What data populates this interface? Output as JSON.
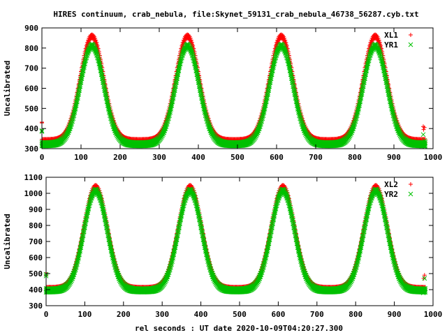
{
  "title": "HIRES continuum, crab_nebula, file:Skynet_59131_crab_nebula_46738_56287.cyb.txt",
  "xlabel_bottom": "rel seconds : UT date 2020-10-09T04:20:27.300",
  "colors": {
    "red": "#ff0000",
    "green": "#00c000"
  },
  "chart_data": [
    {
      "type": "scatter",
      "ylabel": "Uncalibrated",
      "xlim": [
        0,
        1000
      ],
      "ylim": [
        300,
        900
      ],
      "xticks": [
        "0",
        "100",
        "200",
        "300",
        "400",
        "500",
        "600",
        "700",
        "800",
        "900",
        "1000"
      ],
      "yticks": [
        "300",
        "400",
        "500",
        "600",
        "700",
        "800",
        "900"
      ],
      "legend_position": "top-right",
      "model": {
        "peaks_x": [
          128,
          372,
          612,
          852
        ],
        "peak_width_sigma": 30,
        "x_range": [
          0,
          980
        ]
      },
      "series": [
        {
          "name": "XL1",
          "marker": "+",
          "color": "#ff0000",
          "baseline": 338,
          "peak": 858,
          "outliers": [
            [
              0,
              432
            ],
            [
              0,
              428
            ],
            [
              975,
              410
            ],
            [
              978,
              405
            ],
            [
              976,
              395
            ]
          ]
        },
        {
          "name": "YR1",
          "marker": "x",
          "color": "#00c000",
          "baseline": 322,
          "peak": 810,
          "outliers": [
            [
              0,
              390
            ],
            [
              0,
              385
            ],
            [
              975,
              370
            ],
            [
              978,
              340
            ],
            [
              979,
              310
            ]
          ]
        }
      ]
    },
    {
      "type": "scatter",
      "ylabel": "Uncalibrated",
      "xlim": [
        0,
        1000
      ],
      "ylim": [
        300,
        1100
      ],
      "xticks": [
        "0",
        "100",
        "200",
        "300",
        "400",
        "500",
        "600",
        "700",
        "800",
        "900",
        "1000"
      ],
      "yticks": [
        "300",
        "400",
        "500",
        "600",
        "700",
        "800",
        "900",
        "1000",
        "1100"
      ],
      "legend_position": "top-right",
      "model": {
        "peaks_x": [
          128,
          372,
          612,
          852
        ],
        "peak_width_sigma": 30,
        "x_range": [
          0,
          980
        ]
      },
      "series": [
        {
          "name": "XL2",
          "marker": "+",
          "color": "#ff0000",
          "baseline": 405,
          "peak": 1040,
          "outliers": [
            [
              0,
              505
            ],
            [
              0,
              490
            ],
            [
              978,
              490
            ],
            [
              976,
              470
            ]
          ]
        },
        {
          "name": "YR2",
          "marker": "x",
          "color": "#00c000",
          "baseline": 395,
          "peak": 1015,
          "outliers": [
            [
              0,
              495
            ],
            [
              0,
              485
            ],
            [
              978,
              470
            ],
            [
              975,
              380
            ]
          ]
        }
      ]
    }
  ]
}
